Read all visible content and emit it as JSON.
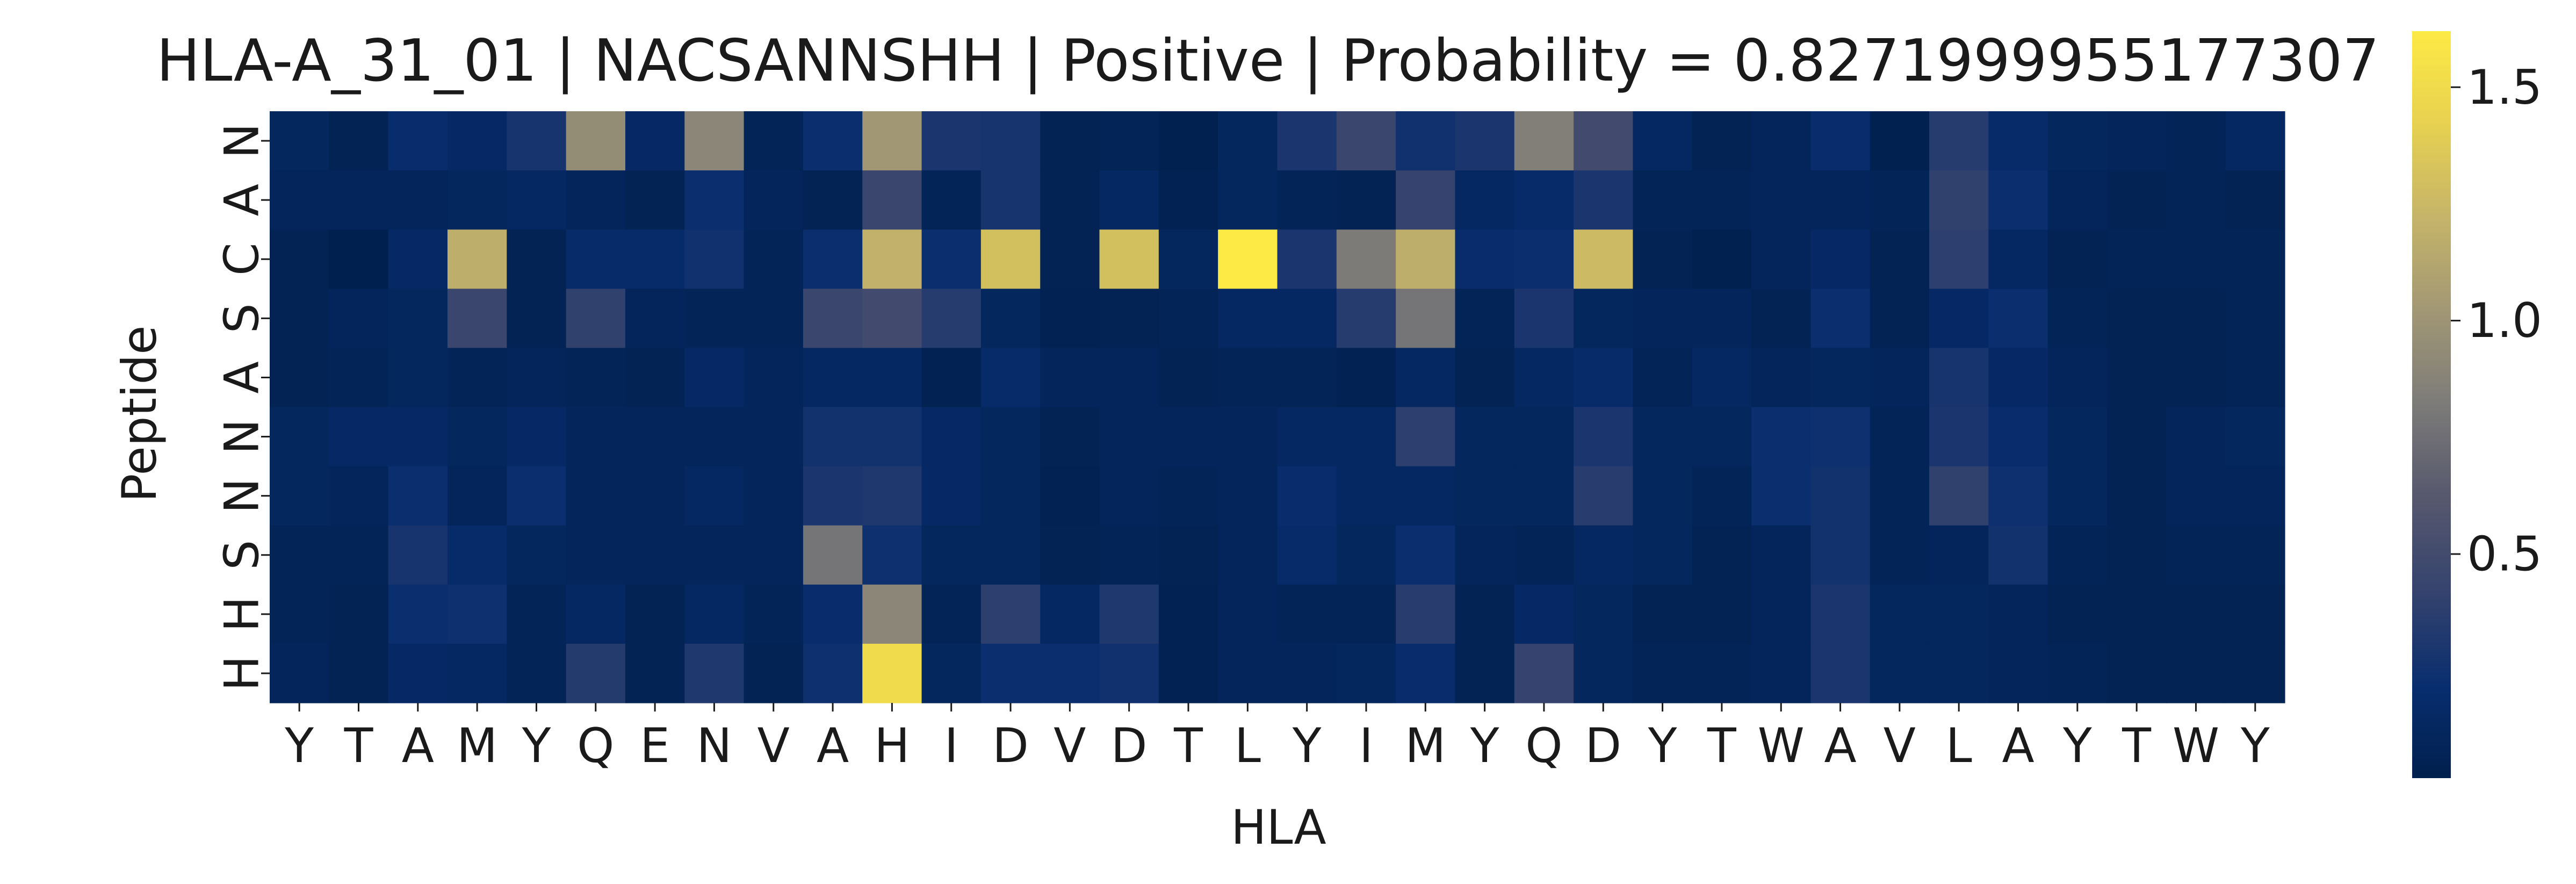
{
  "chart_data": {
    "type": "heatmap",
    "title": "HLA-A_31_01 | NACSANNSHH | Positive | Probability = 0.8271999955177307",
    "xlabel": "HLA",
    "ylabel": "Peptide",
    "x_categories": [
      "Y",
      "T",
      "A",
      "M",
      "Y",
      "Q",
      "E",
      "N",
      "V",
      "A",
      "H",
      "I",
      "D",
      "V",
      "D",
      "T",
      "L",
      "Y",
      "I",
      "M",
      "Y",
      "Q",
      "D",
      "Y",
      "T",
      "W",
      "A",
      "V",
      "L",
      "A",
      "Y",
      "T",
      "W",
      "Y"
    ],
    "y_categories": [
      "N",
      "A",
      "C",
      "S",
      "A",
      "N",
      "N",
      "S",
      "H",
      "H"
    ],
    "colormap": "cividis",
    "vmin": 0.02,
    "vmax": 1.62,
    "colorbar_ticks": [
      {
        "value": 0.5,
        "label": "0.5"
      },
      {
        "value": 1.0,
        "label": "1.0"
      },
      {
        "value": 1.5,
        "label": "1.5"
      }
    ],
    "values": [
      [
        0.12,
        0.06,
        0.2,
        0.16,
        0.28,
        0.95,
        0.16,
        0.9,
        0.08,
        0.22,
        1.02,
        0.3,
        0.28,
        0.06,
        0.08,
        0.04,
        0.12,
        0.3,
        0.45,
        0.25,
        0.3,
        0.85,
        0.5,
        0.14,
        0.06,
        0.1,
        0.2,
        0.04,
        0.35,
        0.18,
        0.12,
        0.1,
        0.08,
        0.14
      ],
      [
        0.1,
        0.1,
        0.1,
        0.12,
        0.14,
        0.1,
        0.06,
        0.22,
        0.1,
        0.06,
        0.45,
        0.08,
        0.28,
        0.06,
        0.14,
        0.05,
        0.12,
        0.08,
        0.06,
        0.42,
        0.14,
        0.18,
        0.3,
        0.08,
        0.08,
        0.1,
        0.1,
        0.08,
        0.4,
        0.22,
        0.1,
        0.06,
        0.08,
        0.06
      ],
      [
        0.06,
        0.03,
        0.16,
        1.18,
        0.06,
        0.18,
        0.18,
        0.25,
        0.08,
        0.22,
        1.2,
        0.22,
        1.3,
        0.06,
        1.3,
        0.12,
        1.62,
        0.3,
        0.82,
        1.18,
        0.2,
        0.22,
        1.26,
        0.06,
        0.04,
        0.1,
        0.16,
        0.06,
        0.38,
        0.14,
        0.06,
        0.08,
        0.08,
        0.08
      ],
      [
        0.06,
        0.1,
        0.12,
        0.45,
        0.06,
        0.4,
        0.1,
        0.08,
        0.08,
        0.45,
        0.5,
        0.35,
        0.12,
        0.05,
        0.06,
        0.08,
        0.14,
        0.14,
        0.35,
        0.78,
        0.08,
        0.3,
        0.12,
        0.1,
        0.1,
        0.06,
        0.22,
        0.06,
        0.16,
        0.22,
        0.08,
        0.06,
        0.06,
        0.08
      ],
      [
        0.06,
        0.08,
        0.12,
        0.08,
        0.1,
        0.08,
        0.06,
        0.16,
        0.1,
        0.14,
        0.14,
        0.05,
        0.18,
        0.1,
        0.1,
        0.06,
        0.08,
        0.08,
        0.05,
        0.14,
        0.06,
        0.14,
        0.18,
        0.08,
        0.14,
        0.1,
        0.12,
        0.1,
        0.28,
        0.16,
        0.1,
        0.06,
        0.06,
        0.08
      ],
      [
        0.12,
        0.16,
        0.16,
        0.12,
        0.16,
        0.1,
        0.1,
        0.1,
        0.1,
        0.26,
        0.26,
        0.16,
        0.12,
        0.06,
        0.1,
        0.1,
        0.1,
        0.14,
        0.14,
        0.38,
        0.12,
        0.12,
        0.3,
        0.12,
        0.12,
        0.22,
        0.24,
        0.08,
        0.3,
        0.2,
        0.12,
        0.06,
        0.1,
        0.12
      ],
      [
        0.12,
        0.1,
        0.22,
        0.1,
        0.22,
        0.1,
        0.1,
        0.14,
        0.1,
        0.3,
        0.32,
        0.16,
        0.12,
        0.05,
        0.1,
        0.08,
        0.1,
        0.2,
        0.14,
        0.14,
        0.12,
        0.12,
        0.36,
        0.12,
        0.08,
        0.22,
        0.26,
        0.08,
        0.4,
        0.24,
        0.12,
        0.06,
        0.1,
        0.1
      ],
      [
        0.08,
        0.08,
        0.28,
        0.18,
        0.12,
        0.1,
        0.1,
        0.1,
        0.1,
        0.78,
        0.24,
        0.12,
        0.12,
        0.06,
        0.08,
        0.06,
        0.1,
        0.18,
        0.12,
        0.22,
        0.1,
        0.08,
        0.14,
        0.12,
        0.06,
        0.1,
        0.26,
        0.08,
        0.1,
        0.26,
        0.08,
        0.06,
        0.08,
        0.08
      ],
      [
        0.08,
        0.06,
        0.22,
        0.24,
        0.08,
        0.14,
        0.06,
        0.14,
        0.08,
        0.2,
        0.9,
        0.08,
        0.38,
        0.14,
        0.32,
        0.05,
        0.1,
        0.08,
        0.08,
        0.36,
        0.06,
        0.16,
        0.12,
        0.06,
        0.06,
        0.1,
        0.3,
        0.12,
        0.12,
        0.1,
        0.06,
        0.06,
        0.06,
        0.06
      ],
      [
        0.1,
        0.06,
        0.16,
        0.14,
        0.08,
        0.34,
        0.06,
        0.32,
        0.06,
        0.24,
        1.5,
        0.12,
        0.22,
        0.22,
        0.25,
        0.05,
        0.1,
        0.1,
        0.12,
        0.2,
        0.06,
        0.42,
        0.12,
        0.08,
        0.08,
        0.1,
        0.3,
        0.12,
        0.12,
        0.1,
        0.08,
        0.06,
        0.06,
        0.06
      ]
    ]
  }
}
